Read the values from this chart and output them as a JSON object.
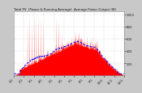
{
  "title": "Total PV  (Power & Running Average)  Average Power Output (W)",
  "bg_color": "#c8c8c8",
  "plot_bg": "#ffffff",
  "grid_color": "#999999",
  "bar_color": "#ff0000",
  "avg_line_color": "#0000ee",
  "ylim": [
    0,
    1050
  ],
  "ytick_vals": [
    200,
    400,
    600,
    800,
    1000
  ],
  "ytick_labels": [
    "200",
    "400",
    "600",
    "800",
    "1000"
  ],
  "num_points": 700,
  "title_fontsize": 2.8,
  "tick_fontsize": 2.8
}
